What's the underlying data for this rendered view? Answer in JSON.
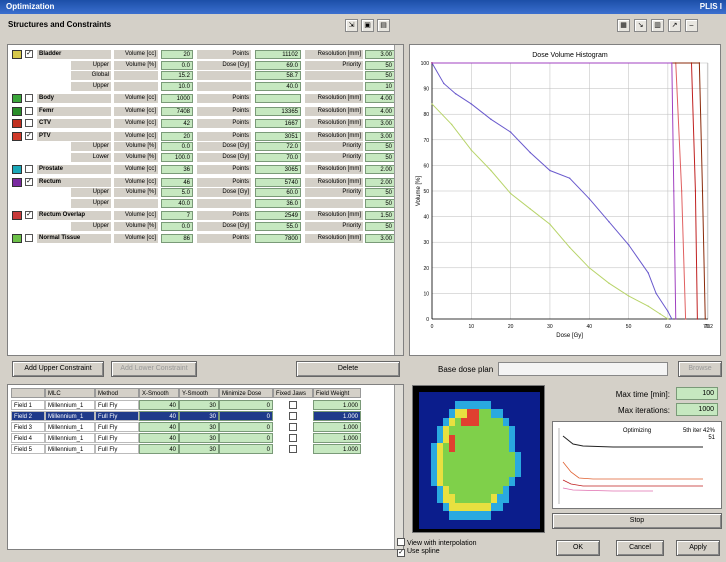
{
  "window": {
    "title": "Optimization",
    "right_title": "PLIS I"
  },
  "structures_header": "Structures and Constraints",
  "structures": [
    {
      "color": "#d6c84a",
      "checked": true,
      "name": "Bladder",
      "rows": [
        [
          "",
          "Volume [cc]",
          "20",
          "Points",
          "11102",
          "Resolution [mm]",
          "3.00"
        ],
        [
          "Upper",
          "Volume [%]",
          "0.0",
          "Dose [Gy]",
          "69.0",
          "Priority",
          "50"
        ],
        [
          "Global",
          "",
          "15.2",
          "",
          "58.7",
          "",
          "50"
        ],
        [
          "Upper",
          "",
          "10.0",
          "",
          "40.0",
          "",
          "10"
        ]
      ]
    },
    {
      "color": "#3aa63a",
      "checked": false,
      "name": "Body",
      "rows": [
        [
          "",
          "Volume [cc]",
          "1000",
          "Points",
          "",
          "Resolution [mm]",
          "4.00"
        ]
      ]
    },
    {
      "color": "#2a8e2a",
      "checked": false,
      "name": "Femr",
      "rows": [
        [
          "",
          "Volume [cc]",
          "7408",
          "Points",
          "13365",
          "Resolution [mm]",
          "4.00"
        ]
      ]
    },
    {
      "color": "#c03020",
      "checked": false,
      "name": "CTV",
      "rows": [
        [
          "",
          "Volume [cc]",
          "42",
          "Points",
          "1667",
          "Resolution [mm]",
          "3.00"
        ]
      ]
    },
    {
      "color": "#d03a2a",
      "checked": true,
      "name": "PTV",
      "rows": [
        [
          "",
          "Volume [cc]",
          "20",
          "Points",
          "3051",
          "Resolution [mm]",
          "3.00"
        ],
        [
          "Upper",
          "Volume [%]",
          "0.0",
          "Dose [Gy]",
          "72.0",
          "Priority",
          "50"
        ],
        [
          "Lower",
          "Volume [%]",
          "100.0",
          "Dose [Gy]",
          "70.0",
          "Priority",
          "50"
        ]
      ]
    },
    {
      "color": "#1aa8b8",
      "checked": false,
      "name": "Prostate",
      "rows": [
        [
          "",
          "Volume [cc]",
          "36",
          "Points",
          "3065",
          "Resolution [mm]",
          "2.00"
        ]
      ]
    },
    {
      "color": "#7a2aa0",
      "checked": true,
      "name": "Rectum",
      "rows": [
        [
          "",
          "Volume [cc]",
          "46",
          "Points",
          "5740",
          "Resolution [mm]",
          "2.00"
        ],
        [
          "Upper",
          "Volume [%]",
          "5.0",
          "Dose [Gy]",
          "60.0",
          "Priority",
          "50"
        ],
        [
          "Upper",
          "",
          "40.0",
          "",
          "36.0",
          "",
          "50"
        ]
      ]
    },
    {
      "color": "#c83a3a",
      "checked": true,
      "name": "Rectum Overlap",
      "rows": [
        [
          "",
          "Volume [cc]",
          "7",
          "Points",
          "2549",
          "Resolution [mm]",
          "1.50"
        ],
        [
          "Upper",
          "Volume [%]",
          "0.0",
          "Dose [Gy]",
          "55.0",
          "Priority",
          "50"
        ]
      ]
    },
    {
      "color": "#6cc048",
      "checked": false,
      "name": "Normal Tissue",
      "rows": [
        [
          "",
          "Volume [cc]",
          "86",
          "Points",
          "7800",
          "Resolution [mm]",
          "3.00"
        ]
      ]
    }
  ],
  "buttons": {
    "add_upper": "Add Upper Constraint",
    "add_lower": "Add Lower Constraint",
    "delete": "Delete",
    "stop": "Stop",
    "ok": "OK",
    "cancel": "Cancel",
    "apply": "Apply",
    "browse": "Browse"
  },
  "base_dose": {
    "label": "Base dose plan",
    "value": ""
  },
  "fields": {
    "headers": [
      "",
      "MLC",
      "Method",
      "X-Smooth",
      "Y-Smooth",
      "Minimize Dose",
      "Fixed Jaws",
      "Field Weight"
    ],
    "rows": [
      [
        "Field 1",
        "Millennium_1",
        "Full Fly",
        "40",
        "30",
        "0",
        "",
        "1.000"
      ],
      [
        "Field 2",
        "Millennium_1",
        "Full Fly",
        "40",
        "30",
        "0",
        "",
        "1.000"
      ],
      [
        "Field 3",
        "Millennium_1",
        "Full Fly",
        "40",
        "30",
        "0",
        "",
        "1.000"
      ],
      [
        "Field 4",
        "Millennium_1",
        "Full Fly",
        "40",
        "30",
        "0",
        "",
        "1.000"
      ],
      [
        "Field 5",
        "Millennium_1",
        "Full Fly",
        "40",
        "30",
        "0",
        "",
        "1.000"
      ]
    ],
    "selected_row": 1
  },
  "options": {
    "view_interpolation": "View with interpolation",
    "use_spline": "Use spline"
  },
  "settings": {
    "max_time_label": "Max time [min]:",
    "max_time": "100",
    "max_iter_label": "Max iterations:",
    "max_iter": "1000"
  },
  "progress_chart": {
    "title": "Optimizing",
    "status": "5th iter 42%",
    "value": "51"
  },
  "chart_data": {
    "type": "line",
    "title": "Dose Volume Histogram",
    "xlabel": "Dose [Gy]",
    "ylabel": "Volume [%]",
    "xlim": [
      0,
      70.2
    ],
    "ylim": [
      0,
      100
    ],
    "xticks": [
      "0",
      "10",
      "20",
      "30",
      "40",
      "50",
      "60",
      "70",
      "70.2"
    ],
    "yticks": [
      "0",
      "10",
      "20",
      "30",
      "40",
      "50",
      "60",
      "70",
      "80",
      "90",
      "100"
    ],
    "series": [
      {
        "color": "#6a5acd",
        "x": [
          0,
          3,
          6,
          10,
          15,
          20,
          25,
          30,
          35,
          40,
          45,
          50,
          55,
          57,
          60,
          61
        ],
        "y": [
          100,
          92,
          88,
          84,
          78,
          73,
          65,
          58,
          55,
          47,
          38,
          29,
          18,
          10,
          3,
          0
        ]
      },
      {
        "color": "#b8d46a",
        "x": [
          0,
          5,
          10,
          15,
          20,
          25,
          30,
          35,
          40,
          45,
          50,
          55,
          58,
          60
        ],
        "y": [
          84,
          76,
          66,
          58,
          49,
          43,
          37,
          28,
          20,
          14,
          9,
          5,
          2,
          0
        ]
      },
      {
        "color": "#e06060",
        "x": [
          0,
          62,
          63.5,
          64.5
        ],
        "y": [
          100,
          100,
          50,
          0
        ]
      },
      {
        "color": "#c02020",
        "x": [
          0,
          66,
          67,
          67.5
        ],
        "y": [
          100,
          100,
          50,
          0
        ]
      },
      {
        "color": "#8a2a0a",
        "x": [
          0,
          68,
          68.8,
          69.5
        ],
        "y": [
          100,
          100,
          50,
          0
        ]
      },
      {
        "color": "#a040c0",
        "x": [
          0,
          61,
          61.5,
          62
        ],
        "y": [
          100,
          100,
          50,
          0
        ]
      }
    ]
  },
  "map": {
    "grid": [
      "bbbbbbbbbbbbbbbbbbbb",
      "bbbbbbccccccbbbbbbbb",
      "bbbbbcyyrrggccbbbbbb",
      "bbbbcygrrrggggcbbbbb",
      "bbbcyggggggggggcbbbb",
      "bbbcyrgggggggggcbbbb",
      "bbcygrgggggggggcbbbb",
      "bbcyggggggggggggcbbb",
      "bbcyggggggggggggcbbb",
      "bbcyggggggggggggcbbb",
      "bbcygggggggggggcbbbb",
      "bbbcygggggggggcbbbbb",
      "bbbcyyggggggyccbbbbb",
      "bbbbcyyyyyyyccbbbbbb",
      "bbbbbcccccccbbbbbbbb",
      "bbbbbbbbbbbbbbbbbbbb"
    ]
  }
}
